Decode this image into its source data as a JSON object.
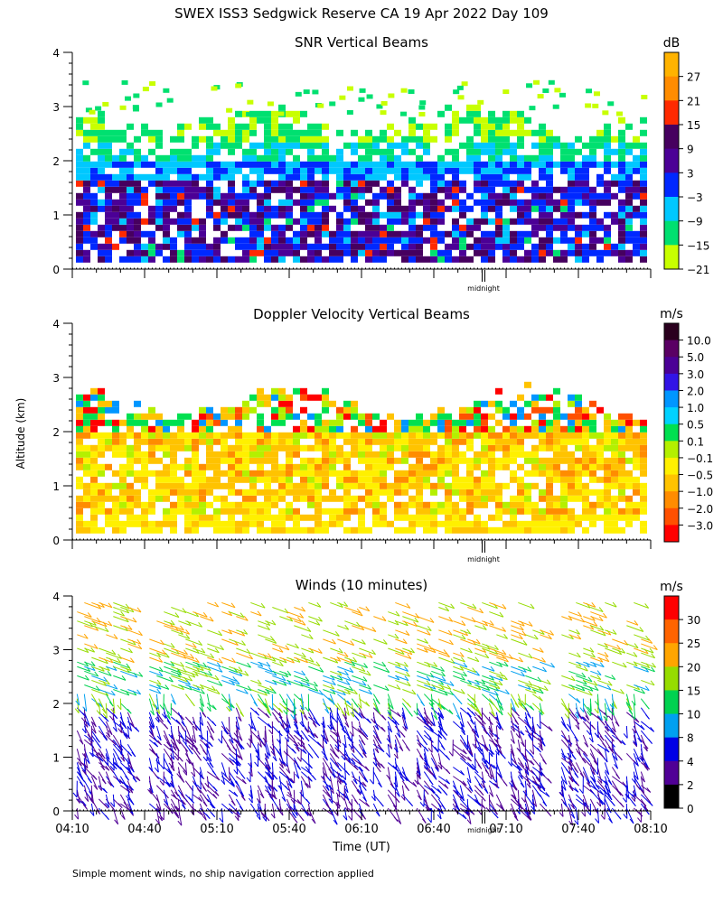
{
  "page_title": "SWEX ISS3 Sedgwick Reserve CA  19 Apr 2022 Day 109",
  "footnote": "Simple moment winds, no ship navigation correction applied",
  "y_axis_label": "Altitude (km)",
  "midnight_label": "midnight",
  "chart_data": [
    {
      "type": "heatmap",
      "title": "SNR Vertical Beams",
      "ylabel": "Altitude (km)",
      "ylim": [
        0,
        4
      ],
      "yticks": [
        "0",
        "1",
        "2",
        "3",
        "4"
      ],
      "colorbar_unit": "dB",
      "colorbar_labels": [
        "27",
        "21",
        "15",
        "9",
        "3",
        "−3",
        "−9",
        "−15",
        "−21"
      ],
      "colorbar_colors": [
        "#ffb300",
        "#ff8c00",
        "#ff2a00",
        "#46005f",
        "#4b0096",
        "#0028ff",
        "#00c8ff",
        "#00e070",
        "#c8ff00"
      ]
    },
    {
      "type": "heatmap",
      "title": "Doppler Velocity Vertical Beams",
      "ylabel": "Altitude (km)",
      "ylim": [
        0,
        4
      ],
      "yticks": [
        "0",
        "1",
        "2",
        "3",
        "4"
      ],
      "colorbar_unit": "m/s",
      "colorbar_labels": [
        "10.0",
        "5.0",
        "3.0",
        "2.0",
        "1.0",
        "0.5",
        "0.1",
        "−0.1",
        "−0.5",
        "−1.0",
        "−2.0",
        "−3.0"
      ],
      "colorbar_colors": [
        "#2a001e",
        "#5a0064",
        "#4b0096",
        "#3214e6",
        "#0096ff",
        "#00d2ff",
        "#00e050",
        "#b4f000",
        "#fff000",
        "#ffc300",
        "#ff8c00",
        "#ff5000",
        "#ff0000"
      ]
    },
    {
      "type": "scatter",
      "title": "Winds (10 minutes)",
      "ylabel": "Altitude (km)",
      "xlabel": "Time (UT)",
      "ylim": [
        0,
        4
      ],
      "yticks": [
        "0",
        "1",
        "2",
        "3",
        "4"
      ],
      "x_range_minutes": [
        250,
        490
      ],
      "xticks": [
        "04:10",
        "04:40",
        "05:10",
        "05:40",
        "06:10",
        "06:40",
        "07:10",
        "07:40",
        "08:10"
      ],
      "colorbar_unit": "m/s",
      "colorbar_labels": [
        "30",
        "25",
        "20",
        "15",
        "10",
        "8",
        "4",
        "2",
        "0"
      ],
      "colorbar_colors": [
        "#ff0000",
        "#ff6400",
        "#ffa500",
        "#96dc00",
        "#00d250",
        "#00a0f0",
        "#0000e6",
        "#500096",
        "#000000"
      ]
    }
  ]
}
